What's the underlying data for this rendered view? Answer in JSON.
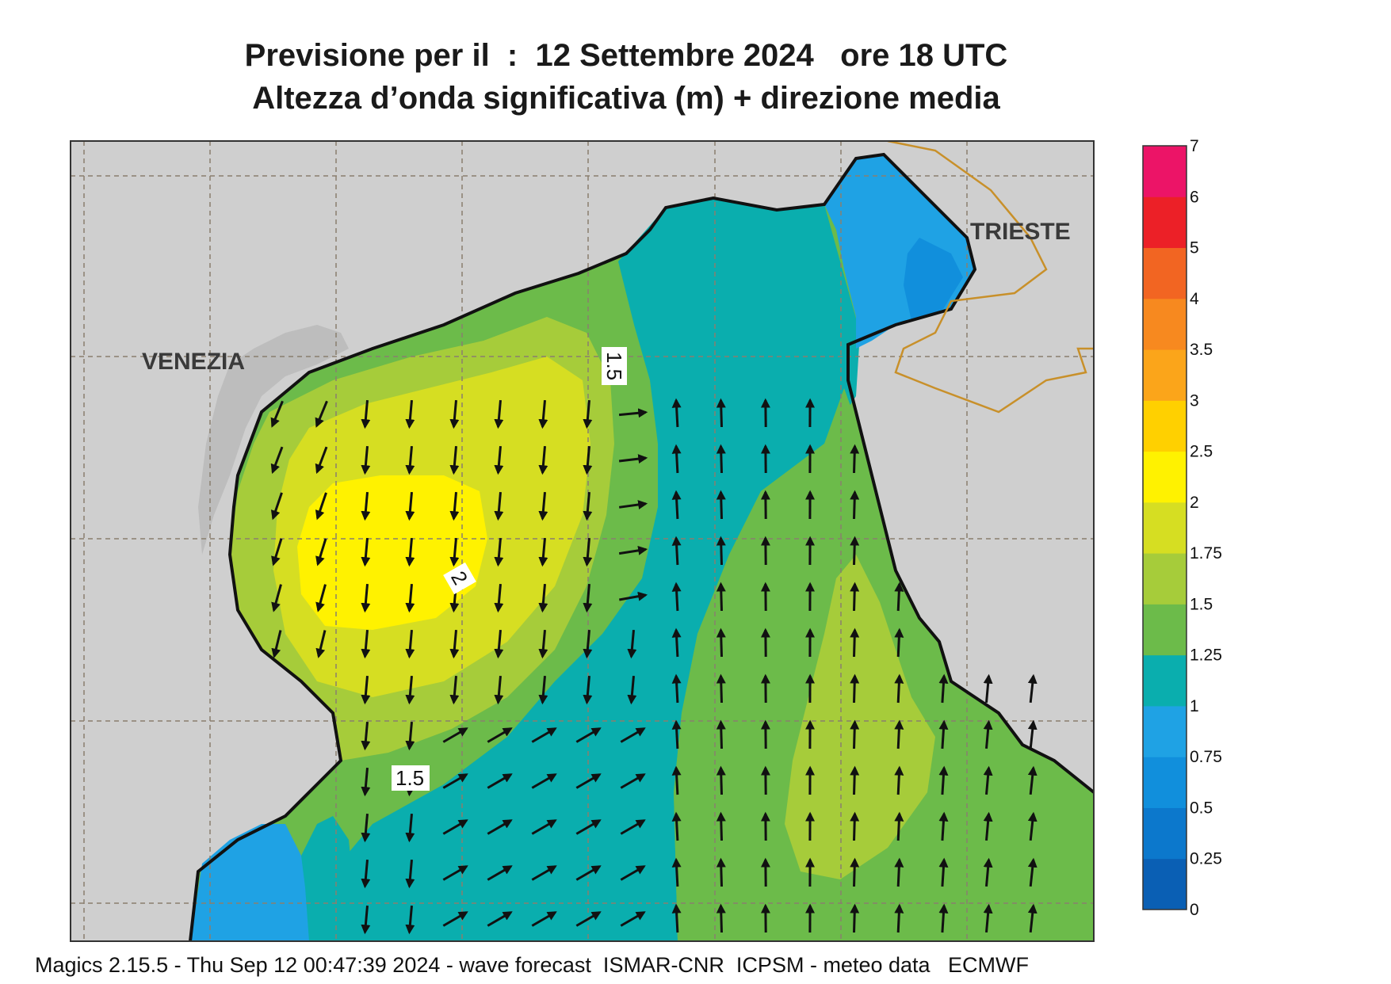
{
  "title": {
    "line1": "Previsione per il  :  12 Settembre 2024   ore 18 UTC",
    "line2": "Altezza d’onda significativa (m) + direzione media"
  },
  "footer": "Magics 2.15.5 - Thu Sep 12 00:47:39 2024 - wave forecast  ISMAR-CNR  ICPSM - meteo data   ECMWF",
  "cities": {
    "venezia": "VENEZIA",
    "trieste": "TRIESTE"
  },
  "contour_labels": {
    "upper": "1.5",
    "center": "2",
    "lower": "1.5"
  },
  "colorbar": {
    "levels": [
      "0",
      "0.25",
      "0.5",
      "0.75",
      "1",
      "1.25",
      "1.5",
      "1.75",
      "2",
      "2.5",
      "3",
      "3.5",
      "4",
      "5",
      "6",
      "7"
    ],
    "colors": [
      "#0a5fb4",
      "#0c78cc",
      "#118fdc",
      "#1fa2e4",
      "#0aaeae",
      "#6cbb4a",
      "#a6cc3a",
      "#d6de22",
      "#fff200",
      "#ffd000",
      "#fba51a",
      "#f7891f",
      "#f26522",
      "#ec2027",
      "#ec1467"
    ]
  },
  "colors": {
    "land": "#cfcfcf",
    "coast": "#111111",
    "border": "#c8902a",
    "grid": "#8a7f6e"
  }
}
